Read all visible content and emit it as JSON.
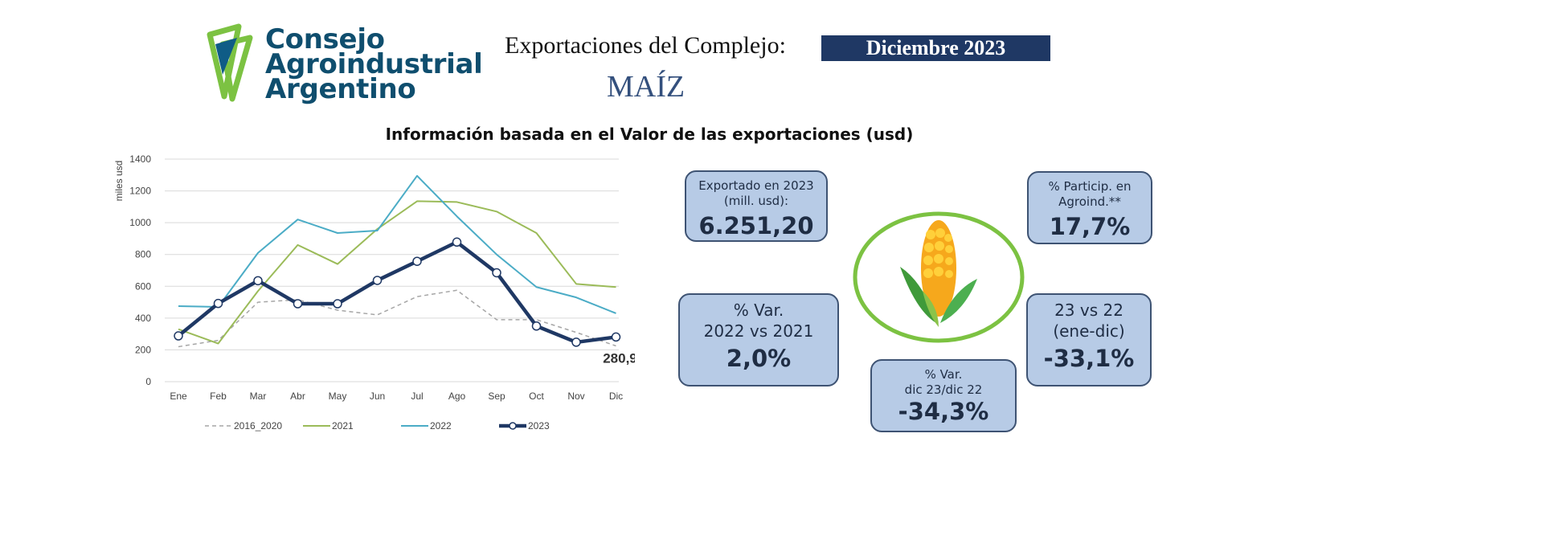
{
  "header": {
    "logo_text": [
      "Consejo",
      "Agroindustrial",
      "Argentino"
    ],
    "title": "Exportaciones del Complejo:",
    "period": "Diciembre 2023",
    "product": "MAÍZ",
    "subtitle": "Información basada en el Valor de las exportaciones (usd)"
  },
  "kpis": {
    "exported": {
      "label1": "Exportado en 2023",
      "label2": "(mill. usd):",
      "value": "6.251,20"
    },
    "share": {
      "label1": "% Particip. en",
      "label2": "Agroind.**",
      "value": "17,7%"
    },
    "var_22_21": {
      "label1": "% Var.",
      "label2": "2022 vs 2021",
      "value": "2,0%"
    },
    "var_23_22": {
      "label1": "23 vs 22",
      "label2": "(ene-dic)",
      "value": "-33,1%"
    },
    "var_dec": {
      "label1": "% Var.",
      "label2": "dic 23/dic 22",
      "value": "-34,3%"
    }
  },
  "colors": {
    "s2016": "#a6a6a6",
    "s2021": "#9bbb59",
    "s2022": "#4bacc6",
    "s2023": "#1f3864"
  },
  "chart_data": {
    "type": "line",
    "ylabel": "miles usd",
    "ylim": [
      0,
      1400
    ],
    "yticks": [
      "0",
      "200",
      "400",
      "600",
      "800",
      "1000",
      "1200",
      "1400"
    ],
    "categories": [
      "Ene",
      "Feb",
      "Mar",
      "Abr",
      "May",
      "Jun",
      "Jul",
      "Ago",
      "Sep",
      "Oct",
      "Nov",
      "Dic"
    ],
    "series": [
      {
        "name": "2016_2020",
        "values": [
          220,
          260,
          500,
          515,
          450,
          420,
          535,
          575,
          390,
          390,
          310,
          225
        ]
      },
      {
        "name": "2021",
        "values": [
          330,
          240,
          570,
          860,
          740,
          960,
          1135,
          1130,
          1070,
          935,
          615,
          595
        ]
      },
      {
        "name": "2022",
        "values": [
          475,
          470,
          810,
          1020,
          935,
          950,
          1295,
          1040,
          800,
          595,
          530,
          430
        ]
      },
      {
        "name": "2023",
        "values": [
          288,
          492,
          635,
          490,
          490,
          637,
          757,
          878,
          685,
          350,
          248,
          281
        ]
      }
    ],
    "annotation": "280,9",
    "legend_position": "bottom",
    "grid": true
  }
}
